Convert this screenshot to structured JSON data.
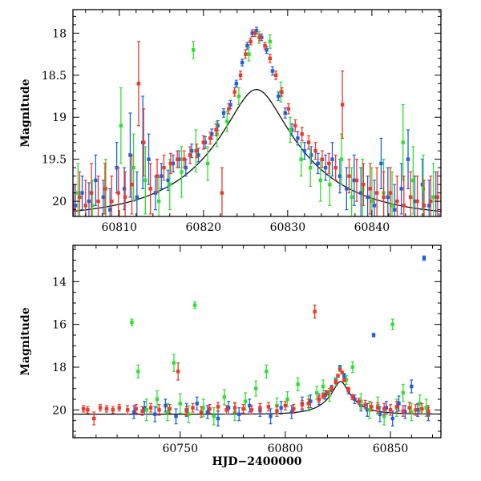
{
  "chart_data": [
    {
      "type": "scatter",
      "title": "",
      "xlabel": "",
      "ylabel": "Magnitude",
      "xlim": [
        60804.5,
        60848.2
      ],
      "ylim": [
        20.18,
        17.72
      ],
      "y_inverted": true,
      "xticks": [
        60810,
        60820,
        60830,
        60840
      ],
      "yticks": [
        18,
        18.5,
        19,
        19.5,
        20
      ],
      "ytick_labels": [
        "18",
        "18.5",
        "19",
        "19.5",
        "20"
      ],
      "x_minor_step": 2,
      "y_minor_step": 0.1,
      "grid": false,
      "legend": "none",
      "model_curve": {
        "t0": 60826.3,
        "u0": 0.25,
        "tE": 12.0,
        "baseline": 20.2,
        "color": "#000000"
      },
      "series": [
        {
          "color": "#2060e0",
          "x": [
            60804.8,
            60805.6,
            60806.4,
            60807.2,
            60808.1,
            60808.9,
            60809.7,
            60810.6,
            60811.3,
            60812.1,
            60812.8,
            60813.5,
            60814.3,
            60815.0,
            60815.8,
            60816.4,
            60817.1,
            60817.9,
            60818.6,
            60819.4,
            60820.2,
            60821.0,
            60821.7,
            60822.4,
            60823.2,
            60823.9,
            60824.6,
            60825.2,
            60825.8,
            60826.3,
            60826.9,
            60827.5,
            60828.2,
            60828.9,
            60829.7,
            60830.5,
            60831.2,
            60832.0,
            60832.8,
            60833.6,
            60834.5,
            60835.3,
            60836.2,
            60837.0,
            60837.9,
            60838.7,
            60839.5,
            60840.3,
            60841.1,
            60841.9,
            60842.7,
            60843.5,
            60844.3,
            60845.1,
            60846.0,
            60846.8,
            60847.6
          ],
          "y": [
            20.05,
            19.9,
            20.0,
            19.75,
            19.95,
            20.1,
            19.6,
            19.85,
            19.45,
            19.95,
            19.3,
            19.5,
            19.9,
            19.7,
            19.75,
            19.55,
            19.5,
            19.6,
            19.4,
            19.45,
            19.3,
            19.2,
            19.1,
            18.95,
            18.85,
            18.6,
            18.35,
            18.15,
            18.0,
            17.97,
            18.05,
            18.2,
            18.45,
            18.75,
            18.95,
            19.15,
            19.25,
            19.4,
            19.45,
            19.55,
            19.6,
            19.5,
            19.7,
            19.85,
            19.75,
            19.9,
            19.95,
            20.05,
            19.55,
            19.95,
            20.1,
            19.85,
            19.5,
            20.0,
            19.8,
            20.05,
            19.95
          ],
          "err": [
            0.25,
            0.2,
            0.22,
            0.3,
            0.2,
            0.25,
            0.3,
            0.25,
            0.5,
            0.3,
            0.55,
            0.3,
            0.2,
            0.15,
            0.12,
            0.1,
            0.1,
            0.1,
            0.08,
            0.08,
            0.07,
            0.06,
            0.06,
            0.05,
            0.05,
            0.04,
            0.04,
            0.04,
            0.04,
            0.04,
            0.04,
            0.04,
            0.05,
            0.05,
            0.06,
            0.07,
            0.08,
            0.1,
            0.1,
            0.12,
            0.15,
            0.2,
            0.2,
            0.25,
            0.3,
            0.3,
            0.25,
            0.3,
            0.3,
            0.35,
            0.3,
            0.3,
            0.35,
            0.3,
            0.3,
            0.3,
            0.3
          ]
        },
        {
          "color": "#30e030",
          "x": [
            60805.1,
            60806.8,
            60808.4,
            60810.2,
            60811.7,
            60813.1,
            60814.7,
            60816.0,
            60817.4,
            60818.8,
            60819.1,
            60820.5,
            60821.6,
            60822.8,
            60824.2,
            60825.4,
            60826.6,
            60827.9,
            60829.2,
            60830.3,
            60831.6,
            60832.7,
            60833.9,
            60835.0,
            60836.4,
            60837.6,
            60838.9,
            60840.0,
            60841.4,
            60842.4,
            60843.7,
            60844.9,
            60846.1,
            60847.3
          ],
          "y": [
            19.9,
            20.05,
            19.85,
            19.1,
            19.6,
            19.75,
            20.0,
            19.8,
            19.65,
            18.2,
            19.4,
            19.55,
            19.2,
            19.05,
            18.75,
            18.25,
            18.05,
            18.1,
            18.7,
            19.15,
            19.5,
            19.6,
            19.75,
            19.8,
            19.5,
            19.95,
            19.85,
            20.0,
            19.9,
            20.05,
            19.3,
            19.75,
            19.85,
            19.95
          ],
          "err": [
            0.35,
            0.3,
            0.35,
            0.45,
            0.4,
            0.4,
            0.3,
            0.3,
            0.3,
            0.1,
            0.25,
            0.2,
            0.15,
            0.12,
            0.1,
            0.08,
            0.07,
            0.08,
            0.12,
            0.15,
            0.2,
            0.22,
            0.25,
            0.25,
            0.3,
            0.35,
            0.35,
            0.4,
            0.4,
            0.4,
            0.45,
            0.4,
            0.4,
            0.4
          ]
        },
        {
          "color": "#f03828",
          "x": [
            60804.6,
            60805.3,
            60806.0,
            60806.7,
            60807.5,
            60808.3,
            60809.1,
            60809.9,
            60810.7,
            60811.5,
            60812.3,
            60812.9,
            60813.7,
            60814.5,
            60815.3,
            60816.1,
            60816.9,
            60817.7,
            60818.4,
            60819.2,
            60820.0,
            60820.8,
            60821.5,
            60822.2,
            60823.0,
            60823.7,
            60824.4,
            60825.0,
            60825.6,
            60826.1,
            60826.7,
            60827.3,
            60827.9,
            60828.6,
            60829.3,
            60830.1,
            60830.9,
            60831.7,
            60832.5,
            60833.3,
            60834.1,
            60834.9,
            60835.7,
            60836.5,
            60837.3,
            60838.2,
            60839.0,
            60839.8,
            60840.6,
            60841.4,
            60842.2,
            60843.0,
            60843.8,
            60844.6,
            60845.4,
            60846.2,
            60847.0,
            60847.8
          ],
          "y": [
            20.1,
            19.95,
            20.05,
            19.9,
            20.0,
            19.85,
            20.0,
            19.9,
            19.95,
            19.8,
            18.6,
            19.3,
            19.85,
            19.7,
            19.6,
            19.55,
            19.5,
            19.5,
            19.45,
            19.4,
            19.3,
            19.25,
            19.15,
            19.9,
            18.9,
            18.7,
            18.5,
            18.25,
            18.1,
            18.0,
            18.05,
            18.15,
            18.3,
            18.5,
            18.7,
            18.9,
            19.1,
            19.2,
            19.3,
            19.4,
            19.5,
            19.55,
            19.6,
            18.85,
            19.7,
            19.75,
            19.8,
            19.85,
            19.9,
            19.95,
            19.9,
            20.0,
            20.05,
            19.95,
            20.0,
            20.05,
            20.0,
            19.95
          ],
          "err": [
            0.3,
            0.3,
            0.3,
            0.35,
            0.3,
            0.3,
            0.3,
            0.3,
            0.3,
            0.35,
            0.5,
            0.4,
            0.3,
            0.2,
            0.15,
            0.12,
            0.1,
            0.1,
            0.1,
            0.08,
            0.08,
            0.07,
            0.07,
            0.3,
            0.06,
            0.05,
            0.05,
            0.05,
            0.04,
            0.04,
            0.04,
            0.04,
            0.05,
            0.05,
            0.05,
            0.06,
            0.07,
            0.08,
            0.08,
            0.1,
            0.1,
            0.12,
            0.15,
            0.4,
            0.2,
            0.25,
            0.25,
            0.3,
            0.3,
            0.3,
            0.3,
            0.3,
            0.35,
            0.3,
            0.3,
            0.3,
            0.3,
            0.3
          ]
        }
      ]
    },
    {
      "type": "scatter",
      "title": "",
      "xlabel": "HJD−2400000",
      "ylabel": "Magnitude",
      "xlim": [
        60699.0,
        60874.0
      ],
      "ylim": [
        21.3,
        12.3
      ],
      "y_inverted": true,
      "xticks": [
        60750,
        60800,
        60850
      ],
      "yticks": [
        14,
        16,
        18,
        20
      ],
      "ytick_labels": [
        "14",
        "16",
        "18",
        "20"
      ],
      "x_minor_step": 10,
      "y_minor_step": 0.5,
      "grid": false,
      "legend": "none",
      "model_curve": {
        "t0": 60826.3,
        "u0": 0.25,
        "tE": 12.0,
        "baseline": 20.2,
        "color": "#000000"
      },
      "series": [
        {
          "color": "#2060e0",
          "x": [
            60728,
            60733,
            60738,
            60743,
            60748,
            60753,
            60758,
            60763,
            60768,
            60773,
            60778,
            60783,
            60788,
            60793,
            60798,
            60803,
            60808,
            60812,
            60816,
            60819,
            60822,
            60824,
            60826,
            60828,
            60830,
            60833,
            60836,
            60839,
            60842,
            60845,
            60848,
            60851,
            60854,
            60857,
            60860,
            60863,
            60866,
            60868
          ],
          "y": [
            20.1,
            19.9,
            20.2,
            19.8,
            20.3,
            20.0,
            19.7,
            20.1,
            20.4,
            19.9,
            20.2,
            19.8,
            20.0,
            20.3,
            19.9,
            20.1,
            19.7,
            19.6,
            19.5,
            19.3,
            19.0,
            18.6,
            18.0,
            18.4,
            19.1,
            19.5,
            19.8,
            20.0,
            16.5,
            20.2,
            19.9,
            20.4,
            19.7,
            20.1,
            18.9,
            20.0,
            12.9,
            20.2
          ],
          "err": [
            0.3,
            0.3,
            0.35,
            0.3,
            0.35,
            0.3,
            0.3,
            0.3,
            0.35,
            0.3,
            0.3,
            0.3,
            0.3,
            0.35,
            0.3,
            0.3,
            0.3,
            0.3,
            0.25,
            0.2,
            0.15,
            0.1,
            0.08,
            0.1,
            0.15,
            0.2,
            0.25,
            0.3,
            0.08,
            0.35,
            0.3,
            0.35,
            0.35,
            0.3,
            0.3,
            0.3,
            0.1,
            0.3
          ]
        },
        {
          "color": "#30e030",
          "x": [
            60727,
            60730,
            60734,
            60739,
            60744,
            60747,
            60750,
            60754,
            60757,
            60761,
            60766,
            60771,
            60776,
            60781,
            60786,
            60791,
            60796,
            60801,
            60806,
            60811,
            60815,
            60818,
            60821,
            60824,
            60826,
            60829,
            60832,
            60836,
            60840,
            60844,
            60847,
            60851,
            60853,
            60856,
            60860,
            60864,
            60867
          ],
          "y": [
            15.9,
            18.2,
            20.0,
            19.5,
            20.1,
            17.8,
            19.7,
            20.2,
            15.1,
            19.9,
            20.3,
            19.4,
            20.1,
            19.6,
            19.0,
            18.2,
            19.8,
            19.5,
            18.8,
            19.7,
            19.2,
            18.9,
            19.3,
            18.7,
            18.1,
            18.6,
            18.0,
            19.6,
            20.0,
            19.8,
            20.3,
            16.0,
            19.9,
            19.2,
            20.1,
            19.7,
            19.9
          ],
          "err": [
            0.15,
            0.3,
            0.5,
            0.4,
            0.4,
            0.4,
            0.45,
            0.4,
            0.15,
            0.4,
            0.4,
            0.35,
            0.4,
            0.4,
            0.35,
            0.3,
            0.35,
            0.35,
            0.3,
            0.35,
            0.3,
            0.3,
            0.3,
            0.2,
            0.1,
            0.2,
            0.25,
            0.35,
            0.4,
            0.4,
            0.4,
            0.25,
            0.4,
            0.4,
            0.4,
            0.4,
            0.4
          ]
        },
        {
          "color": "#f03828",
          "x": [
            60704,
            60706,
            60709,
            60712,
            60715,
            60718,
            60721,
            60725,
            60729,
            60732,
            60736,
            60740,
            60745,
            60749,
            60753,
            60756,
            60760,
            60764,
            60768,
            60772,
            60776,
            60780,
            60784,
            60788,
            60792,
            60796,
            60800,
            60804,
            60808,
            60811,
            60814,
            60816,
            60818,
            60820,
            60822,
            60824,
            60825,
            60826,
            60827,
            60828,
            60830,
            60832,
            60835,
            60838,
            60841,
            60844,
            60847,
            60850,
            60853,
            60856,
            60859,
            60862,
            60865,
            60868
          ],
          "y": [
            19.95,
            20.0,
            20.4,
            19.9,
            19.95,
            20.0,
            19.9,
            20.0,
            19.95,
            20.05,
            19.9,
            20.0,
            19.95,
            18.2,
            20.05,
            19.9,
            20.1,
            19.95,
            19.85,
            20.0,
            19.9,
            19.95,
            20.0,
            19.9,
            19.85,
            20.05,
            19.8,
            19.95,
            19.75,
            19.7,
            15.4,
            19.5,
            19.35,
            19.2,
            19.0,
            18.7,
            18.4,
            18.1,
            18.25,
            18.6,
            19.05,
            19.4,
            19.6,
            19.75,
            19.85,
            19.9,
            19.95,
            20.0,
            19.85,
            20.05,
            19.9,
            20.0,
            19.95,
            20.05
          ],
          "err": [
            0.15,
            0.15,
            0.3,
            0.15,
            0.15,
            0.15,
            0.15,
            0.2,
            0.2,
            0.2,
            0.2,
            0.25,
            0.2,
            0.4,
            0.2,
            0.2,
            0.25,
            0.2,
            0.2,
            0.2,
            0.25,
            0.2,
            0.2,
            0.2,
            0.2,
            0.25,
            0.2,
            0.2,
            0.2,
            0.2,
            0.3,
            0.15,
            0.12,
            0.1,
            0.1,
            0.08,
            0.07,
            0.06,
            0.06,
            0.08,
            0.1,
            0.12,
            0.15,
            0.2,
            0.2,
            0.25,
            0.25,
            0.25,
            0.25,
            0.25,
            0.25,
            0.25,
            0.25,
            0.25
          ]
        }
      ]
    }
  ]
}
